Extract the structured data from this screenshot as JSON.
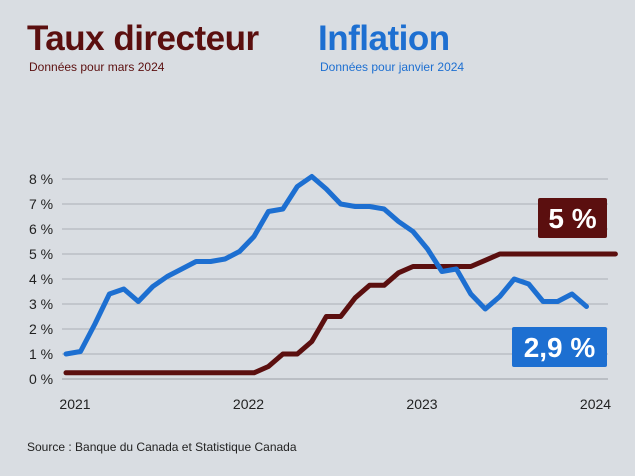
{
  "header": {
    "left_title": "Taux directeur",
    "left_subtitle": "Données pour mars 2024",
    "right_title": "Inflation",
    "right_subtitle": "Données pour janvier 2024"
  },
  "colors": {
    "policy_rate": "#5b0f0f",
    "inflation": "#1d6fd1",
    "grid": "#9aa0a6",
    "background": "#d9dde2"
  },
  "badges": {
    "policy_rate": "5 %",
    "inflation": "2,9 %"
  },
  "source": "Source : Banque du Canada et Statistique Canada",
  "chart_data": {
    "type": "line",
    "ylim": [
      0,
      8
    ],
    "yticks": [
      "0 %",
      "1 %",
      "2 %",
      "3 %",
      "4 %",
      "5 %",
      "6 %",
      "7 %",
      "8 %"
    ],
    "xticks": [
      "2021",
      "2022",
      "2023",
      "2024"
    ],
    "grid": true,
    "series": [
      {
        "key": "inflation",
        "x": [
          "2021-01",
          "2021-02",
          "2021-03",
          "2021-04",
          "2021-05",
          "2021-06",
          "2021-07",
          "2021-08",
          "2021-09",
          "2021-10",
          "2021-11",
          "2021-12",
          "2022-01",
          "2022-02",
          "2022-03",
          "2022-04",
          "2022-05",
          "2022-06",
          "2022-07",
          "2022-08",
          "2022-09",
          "2022-10",
          "2022-11",
          "2022-12",
          "2023-01",
          "2023-02",
          "2023-03",
          "2023-04",
          "2023-05",
          "2023-06",
          "2023-07",
          "2023-08",
          "2023-09",
          "2023-10",
          "2023-11",
          "2023-12",
          "2024-01"
        ],
        "values": [
          1.0,
          1.1,
          2.2,
          3.4,
          3.6,
          3.1,
          3.7,
          4.1,
          4.4,
          4.7,
          4.7,
          4.8,
          5.1,
          5.7,
          6.7,
          6.8,
          7.7,
          8.1,
          7.6,
          7.0,
          6.9,
          6.9,
          6.8,
          6.3,
          5.9,
          5.2,
          4.3,
          4.4,
          3.4,
          2.8,
          3.3,
          4.0,
          3.8,
          3.1,
          3.1,
          3.4,
          2.9
        ]
      },
      {
        "key": "policy_rate",
        "x": [
          "2021-01",
          "2022-02",
          "2022-03",
          "2022-04",
          "2022-05",
          "2022-06",
          "2022-07",
          "2022-08",
          "2022-09",
          "2022-10",
          "2022-11",
          "2022-12",
          "2023-01",
          "2023-02",
          "2023-03",
          "2023-04",
          "2023-05",
          "2023-06",
          "2023-07",
          "2024-03"
        ],
        "values": [
          0.25,
          0.25,
          0.5,
          1.0,
          1.0,
          1.5,
          2.5,
          2.5,
          3.25,
          3.75,
          3.75,
          4.25,
          4.5,
          4.5,
          4.5,
          4.5,
          4.5,
          4.75,
          5.0,
          5.0
        ]
      }
    ]
  }
}
